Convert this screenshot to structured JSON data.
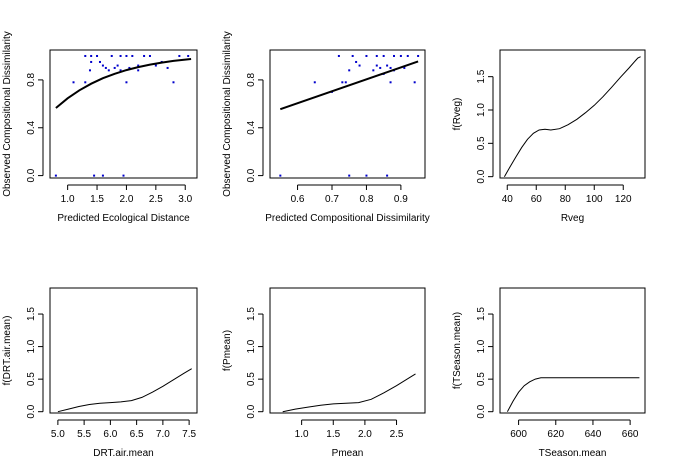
{
  "chart_data": [
    {
      "type": "scatter",
      "title": "",
      "xlabel": "Predicted Ecological Distance",
      "ylabel": "Observed Compositional Dissimilarity",
      "xlim": [
        0.7,
        3.2
      ],
      "ylim": [
        -0.02,
        1.05
      ],
      "xticks": [
        "1.0",
        "1.5",
        "2.0",
        "2.5",
        "3.0"
      ],
      "yticks": [
        "0.0",
        "0.4",
        "0.8"
      ],
      "grid": false,
      "points_color": "#0000cc",
      "line_color": "#000000",
      "points": [
        [
          0.8,
          0.0
        ],
        [
          1.1,
          0.78
        ],
        [
          1.3,
          1.0
        ],
        [
          1.4,
          1.0
        ],
        [
          1.45,
          0.0
        ],
        [
          1.5,
          1.0
        ],
        [
          1.55,
          0.95
        ],
        [
          1.6,
          0.92
        ],
        [
          1.65,
          0.9
        ],
        [
          1.38,
          0.88
        ],
        [
          1.4,
          0.95
        ],
        [
          1.6,
          0.0
        ],
        [
          1.75,
          1.0
        ],
        [
          1.8,
          0.9
        ],
        [
          1.85,
          0.92
        ],
        [
          1.9,
          1.0
        ],
        [
          1.95,
          0.0
        ],
        [
          2.0,
          1.0
        ],
        [
          2.0,
          0.78
        ],
        [
          2.05,
          0.9
        ],
        [
          2.1,
          1.0
        ],
        [
          2.2,
          0.88
        ],
        [
          2.3,
          1.0
        ],
        [
          2.4,
          1.0
        ],
        [
          2.5,
          0.92
        ],
        [
          2.6,
          0.95
        ],
        [
          2.7,
          0.9
        ],
        [
          2.8,
          0.78
        ],
        [
          2.9,
          1.0
        ],
        [
          3.05,
          1.0
        ],
        [
          1.9,
          0.88
        ],
        [
          1.7,
          0.88
        ],
        [
          1.3,
          0.78
        ],
        [
          2.2,
          0.92
        ]
      ],
      "curve": [
        [
          0.8,
          0.565
        ],
        [
          1.0,
          0.646
        ],
        [
          1.2,
          0.713
        ],
        [
          1.4,
          0.768
        ],
        [
          1.6,
          0.814
        ],
        [
          1.8,
          0.851
        ],
        [
          2.0,
          0.882
        ],
        [
          2.2,
          0.907
        ],
        [
          2.4,
          0.928
        ],
        [
          2.6,
          0.945
        ],
        [
          2.8,
          0.959
        ],
        [
          3.0,
          0.97
        ],
        [
          3.1,
          0.975
        ]
      ]
    },
    {
      "type": "scatter",
      "title": "",
      "xlabel": "Predicted Compositional Dissimilarity",
      "ylabel": "Observed Compositional Dissimilarity",
      "xlim": [
        0.52,
        0.97
      ],
      "ylim": [
        -0.02,
        1.05
      ],
      "xticks": [
        "0.6",
        "0.7",
        "0.8",
        "0.9"
      ],
      "yticks": [
        "0.0",
        "0.4",
        "0.8"
      ],
      "grid": false,
      "points_color": "#0000cc",
      "line_color": "#000000",
      "points": [
        [
          0.55,
          0.0
        ],
        [
          0.65,
          0.78
        ],
        [
          0.7,
          0.7
        ],
        [
          0.72,
          1.0
        ],
        [
          0.74,
          0.78
        ],
        [
          0.75,
          0.0
        ],
        [
          0.76,
          1.0
        ],
        [
          0.77,
          0.95
        ],
        [
          0.78,
          0.92
        ],
        [
          0.8,
          0.0
        ],
        [
          0.8,
          1.0
        ],
        [
          0.82,
          0.88
        ],
        [
          0.83,
          1.0
        ],
        [
          0.84,
          0.9
        ],
        [
          0.85,
          1.0
        ],
        [
          0.85,
          0.85
        ],
        [
          0.86,
          0.0
        ],
        [
          0.86,
          0.92
        ],
        [
          0.87,
          0.78
        ],
        [
          0.88,
          1.0
        ],
        [
          0.88,
          0.88
        ],
        [
          0.9,
          1.0
        ],
        [
          0.91,
          0.9
        ],
        [
          0.92,
          1.0
        ],
        [
          0.94,
          0.78
        ],
        [
          0.95,
          1.0
        ],
        [
          0.75,
          0.88
        ],
        [
          0.73,
          0.78
        ],
        [
          0.83,
          0.92
        ],
        [
          0.87,
          0.9
        ]
      ],
      "curve": [
        [
          0.55,
          0.555
        ],
        [
          0.95,
          0.955
        ]
      ]
    },
    {
      "type": "line",
      "title": "",
      "xlabel": "Rveg",
      "ylabel": "f(Rveg)",
      "xlim": [
        35,
        135
      ],
      "ylim": [
        -0.02,
        1.9
      ],
      "xticks": [
        "40",
        "60",
        "80",
        "100",
        "120"
      ],
      "yticks": [
        "0.0",
        "0.5",
        "1.0",
        "1.5"
      ],
      "grid": false,
      "line_color": "#000000",
      "curve": [
        [
          38,
          0.0
        ],
        [
          42,
          0.15
        ],
        [
          46,
          0.3
        ],
        [
          50,
          0.44
        ],
        [
          54,
          0.56
        ],
        [
          58,
          0.65
        ],
        [
          62,
          0.7
        ],
        [
          66,
          0.71
        ],
        [
          70,
          0.7
        ],
        [
          76,
          0.72
        ],
        [
          82,
          0.78
        ],
        [
          88,
          0.86
        ],
        [
          94,
          0.96
        ],
        [
          100,
          1.07
        ],
        [
          106,
          1.2
        ],
        [
          112,
          1.34
        ],
        [
          118,
          1.49
        ],
        [
          124,
          1.63
        ],
        [
          130,
          1.78
        ],
        [
          132,
          1.8
        ]
      ]
    },
    {
      "type": "line",
      "title": "",
      "xlabel": "DRT.air.mean",
      "ylabel": "f(DRT.air.mean)",
      "xlim": [
        4.85,
        7.65
      ],
      "ylim": [
        -0.02,
        1.9
      ],
      "xticks": [
        "5.0",
        "5.5",
        "6.0",
        "6.5",
        "7.0",
        "7.5"
      ],
      "yticks": [
        "0.0",
        "0.5",
        "1.0",
        "1.5"
      ],
      "grid": false,
      "line_color": "#000000",
      "curve": [
        [
          5.0,
          0.0
        ],
        [
          5.2,
          0.04
        ],
        [
          5.4,
          0.08
        ],
        [
          5.6,
          0.11
        ],
        [
          5.8,
          0.13
        ],
        [
          6.0,
          0.14
        ],
        [
          6.2,
          0.15
        ],
        [
          6.4,
          0.17
        ],
        [
          6.6,
          0.22
        ],
        [
          6.8,
          0.3
        ],
        [
          7.0,
          0.39
        ],
        [
          7.2,
          0.49
        ],
        [
          7.4,
          0.59
        ],
        [
          7.55,
          0.66
        ]
      ]
    },
    {
      "type": "line",
      "title": "",
      "xlabel": "Pmean",
      "ylabel": "f(Pmean)",
      "xlim": [
        0.5,
        2.95
      ],
      "ylim": [
        -0.02,
        1.9
      ],
      "xticks": [
        "1.0",
        "1.5",
        "2.0",
        "2.5"
      ],
      "yticks": [
        "0.0",
        "0.5",
        "1.0",
        "1.5"
      ],
      "grid": false,
      "line_color": "#000000",
      "curve": [
        [
          0.7,
          0.0
        ],
        [
          0.9,
          0.04
        ],
        [
          1.1,
          0.07
        ],
        [
          1.3,
          0.1
        ],
        [
          1.5,
          0.12
        ],
        [
          1.7,
          0.13
        ],
        [
          1.9,
          0.14
        ],
        [
          2.1,
          0.19
        ],
        [
          2.3,
          0.29
        ],
        [
          2.5,
          0.4
        ],
        [
          2.7,
          0.52
        ],
        [
          2.8,
          0.58
        ]
      ]
    },
    {
      "type": "line",
      "title": "",
      "xlabel": "TSeason.mean",
      "ylabel": "f(TSeason.mean)",
      "xlim": [
        590,
        668
      ],
      "ylim": [
        -0.02,
        1.9
      ],
      "xticks": [
        "600",
        "620",
        "640",
        "660"
      ],
      "yticks": [
        "0.0",
        "0.5",
        "1.0",
        "1.5"
      ],
      "grid": false,
      "line_color": "#000000",
      "curve": [
        [
          594,
          0.0
        ],
        [
          597,
          0.16
        ],
        [
          600,
          0.3
        ],
        [
          603,
          0.4
        ],
        [
          606,
          0.46
        ],
        [
          609,
          0.5
        ],
        [
          612,
          0.52
        ],
        [
          620,
          0.52
        ],
        [
          640,
          0.52
        ],
        [
          665,
          0.52
        ]
      ]
    }
  ]
}
